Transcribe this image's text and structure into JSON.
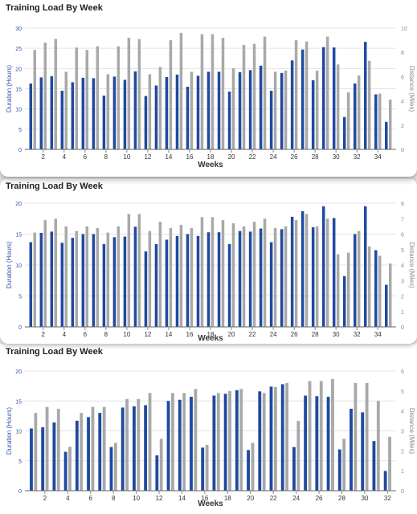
{
  "colors": {
    "duration": "#1f4aa0",
    "distance": "#a9a9a9",
    "axis_left": "#2f55a8",
    "axis_right": "#8a8a8a",
    "grid": "#e3e3e3"
  },
  "chart_data": [
    {
      "type": "bar",
      "title": "Training Load By Week",
      "xlabel": "Weeks",
      "ylabel": "Duration (Hours)",
      "y2label": "Distance (Miles)",
      "ylim": [
        0,
        30
      ],
      "y2lim": [
        0,
        10
      ],
      "yticks": [
        "0",
        "5",
        "10",
        "15",
        "20",
        "25",
        "30"
      ],
      "y2ticks": [
        "0",
        "2",
        "4",
        "6",
        "8",
        "10"
      ],
      "xticks": [
        "2",
        "4",
        "6",
        "8",
        "10",
        "12",
        "14",
        "16",
        "18",
        "20",
        "22",
        "24",
        "26",
        "28",
        "30",
        "32",
        "34"
      ],
      "x": [
        1,
        2,
        3,
        4,
        5,
        6,
        7,
        8,
        9,
        10,
        11,
        12,
        13,
        14,
        15,
        16,
        17,
        18,
        19,
        20,
        21,
        22,
        23,
        24,
        25,
        26,
        27,
        28,
        29,
        30,
        31,
        32,
        33,
        34,
        35
      ],
      "grid": true,
      "series": [
        {
          "name": "Duration",
          "axis": "left",
          "values": [
            16.3,
            17.8,
            18.1,
            14.5,
            16.6,
            17.7,
            17.6,
            13.3,
            18.0,
            17.2,
            19.3,
            13.2,
            15.8,
            17.9,
            18.5,
            15.5,
            18.2,
            19.2,
            19.2,
            14.3,
            19.1,
            19.6,
            20.7,
            14.5,
            18.9,
            22.0,
            24.7,
            17.1,
            25.3,
            25.2,
            8.0,
            16.3,
            26.6,
            13.6,
            6.8
          ]
        },
        {
          "name": "Distance",
          "axis": "right",
          "values": [
            8.2,
            8.8,
            9.1,
            6.4,
            8.4,
            8.2,
            8.5,
            6.2,
            8.5,
            9.2,
            9.1,
            6.2,
            6.8,
            9.0,
            9.6,
            6.4,
            9.5,
            9.5,
            9.2,
            6.7,
            8.6,
            8.7,
            9.3,
            6.4,
            6.5,
            9.0,
            8.9,
            6.5,
            9.3,
            7.0,
            4.7,
            6.1,
            7.3,
            4.6,
            4.1
          ]
        }
      ]
    },
    {
      "type": "bar",
      "title": "Training Load By Week",
      "xlabel": "Weeks",
      "ylabel": "Duration (Hours)",
      "y2label": "Distance (Miles)",
      "ylim": [
        0,
        20
      ],
      "y2lim": [
        0,
        8
      ],
      "yticks": [
        "0",
        "5",
        "10",
        "15",
        "20"
      ],
      "y2ticks": [
        "0",
        "1",
        "2",
        "3",
        "4",
        "5",
        "6",
        "7",
        "8"
      ],
      "xticks": [
        "2",
        "4",
        "6",
        "8",
        "10",
        "12",
        "14",
        "16",
        "18",
        "20",
        "22",
        "24",
        "26",
        "28",
        "30",
        "32",
        "34"
      ],
      "x": [
        1,
        2,
        3,
        4,
        5,
        6,
        7,
        8,
        9,
        10,
        11,
        12,
        13,
        14,
        15,
        16,
        17,
        18,
        19,
        20,
        21,
        22,
        23,
        24,
        25,
        26,
        27,
        28,
        29,
        30,
        31,
        32,
        33,
        34,
        35
      ],
      "grid": true,
      "series": [
        {
          "name": "Duration",
          "axis": "left",
          "values": [
            13.7,
            15.2,
            15.4,
            13.6,
            14.4,
            15.0,
            15.0,
            13.4,
            14.5,
            14.6,
            16.2,
            12.2,
            13.4,
            14.1,
            14.7,
            15.0,
            14.7,
            15.3,
            15.3,
            13.4,
            15.5,
            15.4,
            15.9,
            13.7,
            15.8,
            17.8,
            18.7,
            16.1,
            19.5,
            17.6,
            8.2,
            15.0,
            19.5,
            12.4,
            6.8
          ]
        },
        {
          "name": "Distance",
          "axis": "right",
          "values": [
            6.1,
            6.9,
            7.0,
            6.5,
            6.2,
            6.5,
            6.4,
            6.1,
            6.5,
            7.3,
            7.3,
            6.2,
            6.8,
            6.4,
            6.6,
            6.4,
            7.1,
            7.1,
            6.9,
            6.7,
            6.5,
            6.8,
            7.0,
            6.4,
            6.5,
            6.9,
            7.3,
            6.5,
            7.0,
            4.7,
            4.8,
            6.2,
            5.2,
            4.6,
            4.1
          ]
        }
      ]
    },
    {
      "type": "bar",
      "title": "Training Load By Week",
      "xlabel": "Weeks",
      "ylabel": "Duration (Hours)",
      "y2label": "Distance (Miles)",
      "ylim": [
        0,
        20
      ],
      "y2lim": [
        0,
        6
      ],
      "yticks": [
        "0",
        "5",
        "10",
        "15",
        "20"
      ],
      "y2ticks": [
        "0",
        "1",
        "2",
        "3",
        "4",
        "5",
        "6"
      ],
      "xticks": [
        "2",
        "4",
        "6",
        "8",
        "10",
        "12",
        "14",
        "16",
        "18",
        "20",
        "22",
        "24",
        "26",
        "28",
        "30",
        "32"
      ],
      "x": [
        1,
        2,
        3,
        4,
        5,
        6,
        7,
        8,
        9,
        10,
        11,
        12,
        13,
        14,
        15,
        16,
        17,
        18,
        19,
        20,
        21,
        22,
        23,
        24,
        25,
        26,
        27,
        28,
        29,
        30,
        31,
        32
      ],
      "grid": true,
      "series": [
        {
          "name": "Duration",
          "axis": "left",
          "values": [
            10.4,
            10.6,
            11.4,
            6.5,
            11.7,
            12.3,
            13.0,
            7.3,
            13.9,
            14.1,
            14.3,
            5.9,
            15.0,
            15.2,
            15.7,
            7.2,
            15.9,
            16.2,
            16.8,
            6.8,
            16.6,
            17.4,
            17.8,
            7.3,
            15.9,
            15.8,
            15.7,
            6.9,
            13.7,
            13.1,
            8.3,
            3.3
          ]
        },
        {
          "name": "Distance",
          "axis": "right",
          "values": [
            3.9,
            4.2,
            4.1,
            2.2,
            3.9,
            4.2,
            4.2,
            2.4,
            4.6,
            4.6,
            4.9,
            2.6,
            4.9,
            4.9,
            5.1,
            2.3,
            4.9,
            5.0,
            5.1,
            2.4,
            4.9,
            5.2,
            5.4,
            3.5,
            5.5,
            5.5,
            5.6,
            2.6,
            5.4,
            5.4,
            4.5,
            2.7
          ]
        }
      ]
    }
  ]
}
